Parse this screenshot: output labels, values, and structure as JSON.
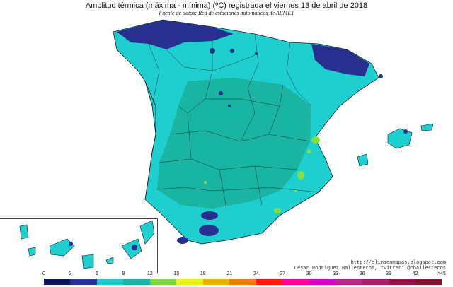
{
  "header": {
    "title": "Amplitud térmica (máxima - mínima) (ºC) registrada el viernes 13 de abril de 2018",
    "subtitle": "Fuente de datos: Red de estaciones automáticas de AEMET"
  },
  "credits": {
    "url": "http://climaenmapas.blogspot.com",
    "author": "César Rodríguez Ballesteros, twitter: @cballesteros"
  },
  "legend": {
    "tick_labels": [
      "0",
      "3",
      "6",
      "9",
      "12",
      "15",
      "18",
      "21",
      "24",
      "27",
      "30",
      "33",
      "36",
      "39",
      "42",
      ">45"
    ],
    "colors": [
      "#0c1460",
      "#25309a",
      "#1ec8c8",
      "#18b4a4",
      "#7ad83a",
      "#e8f020",
      "#f0b000",
      "#f07a00",
      "#ff1a00",
      "#ff00a0",
      "#d000d0",
      "#c0208a",
      "#b01868",
      "#a01048",
      "#8a1030"
    ]
  },
  "colors": {
    "cyan": "#1dcfcf",
    "teal": "#19b4a2",
    "navy": "#27308f",
    "dark_navy": "#1a2270",
    "green": "#84df3a",
    "border": "#1a1a1a"
  }
}
